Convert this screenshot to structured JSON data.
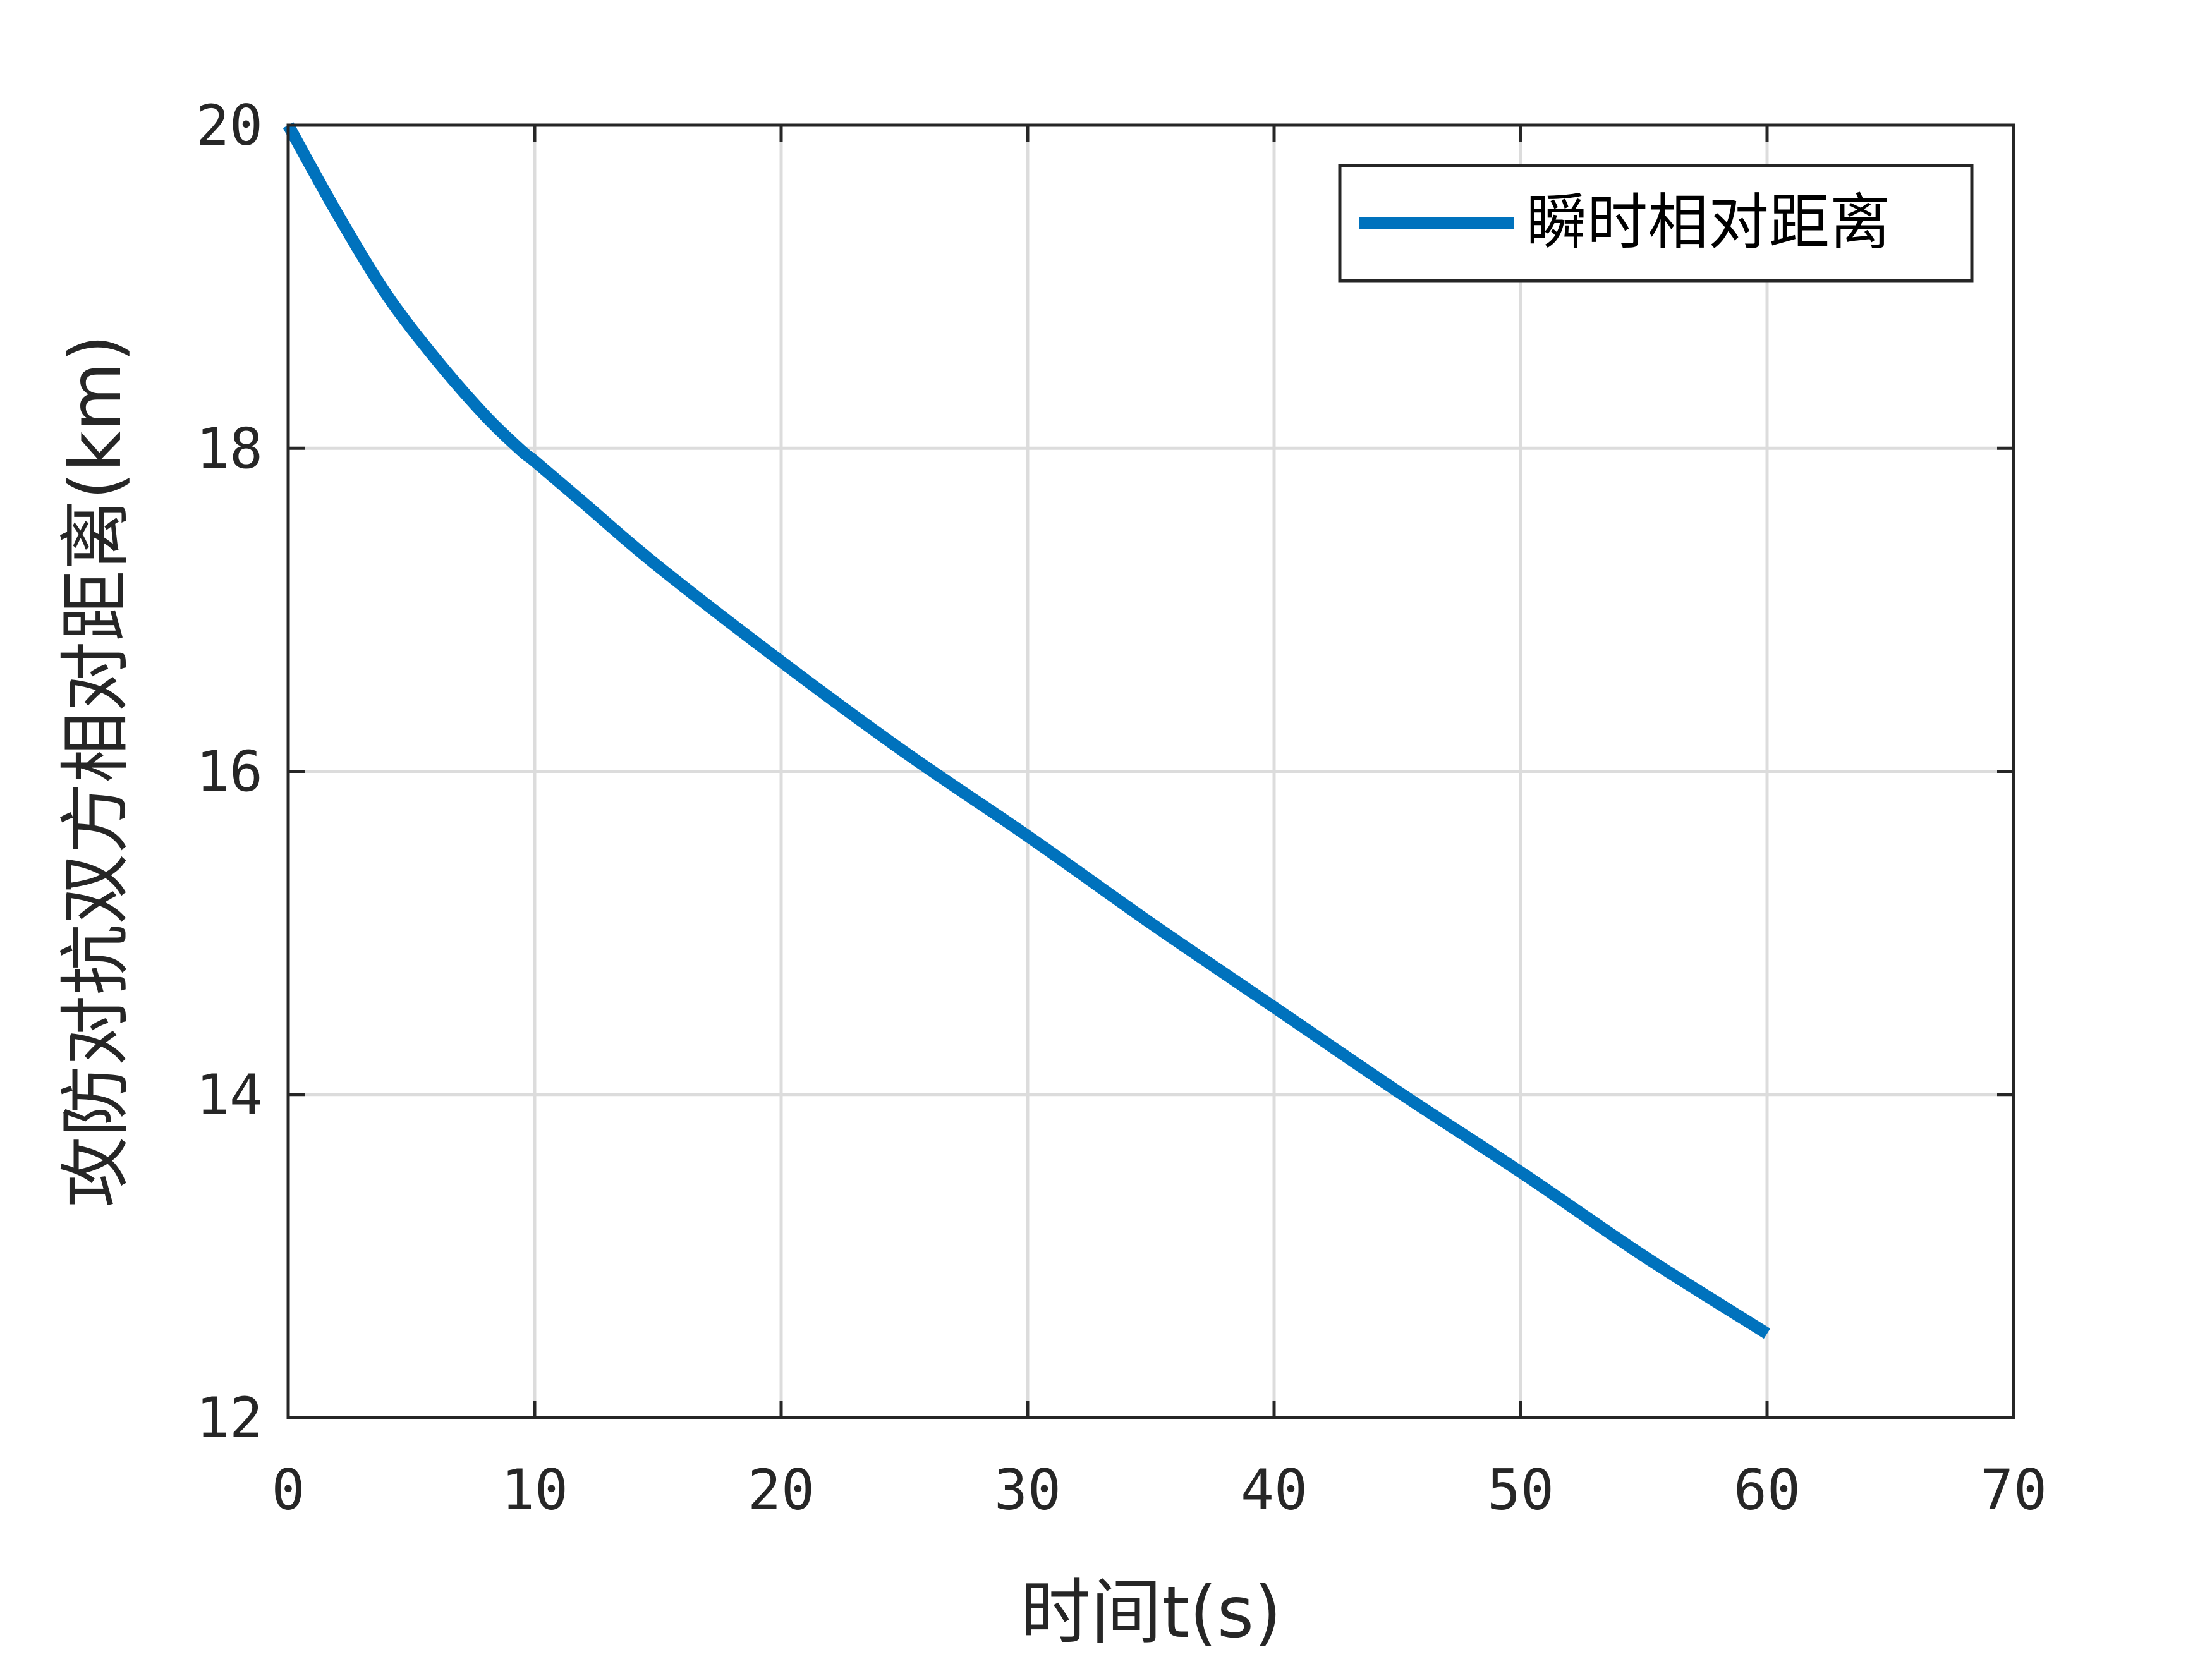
{
  "chart_data": {
    "type": "line",
    "title": "",
    "xlabel": "时间t(s)",
    "ylabel": "攻防对抗双方相对距离(km)",
    "xlim": [
      0,
      70
    ],
    "ylim": [
      12,
      20
    ],
    "xticks": [
      0,
      10,
      20,
      30,
      40,
      50,
      60,
      70
    ],
    "yticks": [
      12,
      14,
      16,
      18,
      20
    ],
    "xtick_labels": [
      "0",
      "10",
      "20",
      "30",
      "40",
      "50",
      "60",
      "70"
    ],
    "ytick_labels": [
      "12",
      "14",
      "16",
      "18",
      "20"
    ],
    "grid": true,
    "legend_position": "top-right",
    "series": [
      {
        "name": "瞬时相对距离",
        "color": "#0072BD",
        "x": [
          0,
          2,
          4,
          6,
          8,
          9.5,
          10,
          12,
          15,
          20,
          25,
          30,
          35,
          40,
          45,
          50,
          55,
          60
        ],
        "y": [
          20.0,
          19.45,
          18.95,
          18.55,
          18.2,
          17.98,
          17.92,
          17.66,
          17.27,
          16.68,
          16.12,
          15.6,
          15.06,
          14.54,
          14.02,
          13.52,
          13.0,
          12.52
        ]
      }
    ]
  }
}
